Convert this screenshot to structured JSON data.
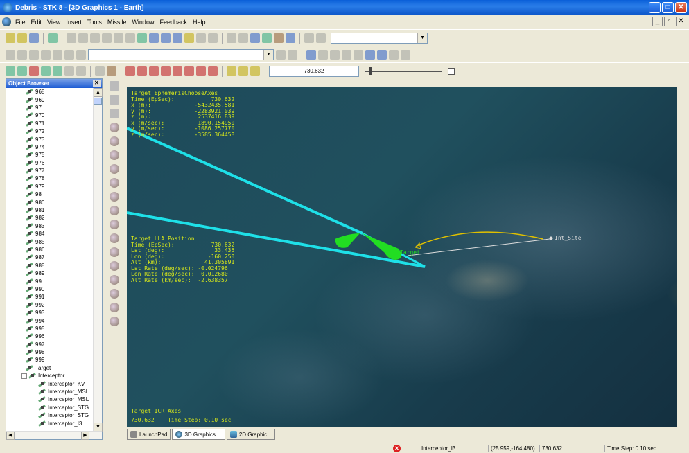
{
  "window": {
    "title": "Debris - STK 8 - [3D Graphics 1 - Earth]"
  },
  "menu": [
    "File",
    "Edit",
    "View",
    "Insert",
    "Tools",
    "Missile",
    "Window",
    "Feedback",
    "Help"
  ],
  "toolbar": {
    "time_value": "730.632"
  },
  "object_browser": {
    "title": "Object Browser",
    "items": [
      "968",
      "969",
      "97",
      "970",
      "971",
      "972",
      "973",
      "974",
      "975",
      "976",
      "977",
      "978",
      "979",
      "98",
      "980",
      "981",
      "982",
      "983",
      "984",
      "985",
      "986",
      "987",
      "988",
      "989",
      "99",
      "990",
      "991",
      "992",
      "993",
      "994",
      "995",
      "996",
      "997",
      "998",
      "999",
      "Target"
    ],
    "interceptor_label": "Interceptor",
    "interceptor_children": [
      "Interceptor_KV",
      "Interceptor_MSL",
      "Interceptor_MSL",
      "Interceptor_STG",
      "Interceptor_STG",
      "Interceptor_I3"
    ]
  },
  "view": {
    "ephemeris": "Target EphemerisChooseAxes\nTime (EpSec):           730.632\nx (m):             -5432435.581\ny (m):             -2283921.039\nz (m):              2537416.839\nx (m/sec):          1890.154950\ny (m/sec):         -1086.257770\nz (m/sec):         -3585.364458",
    "lla": "Target LLA Position\nTime (EpSec):           730.632\nLat (deg):               33.435\nLon (deg):             -160.250\nAlt (km):             41.305891\nLat Rate (deg/sec): -0.024796\nLon Rate (deg/sec):  0.012680\nAlt Rate (km/sec):  -2.638357",
    "icr_axes": "Target ICR Axes",
    "icr_time": "730.632    Time Step: 0.10 sec",
    "target_label": "Target",
    "site_label": "Int_Site"
  },
  "tabs": [
    {
      "label": "LaunchPad"
    },
    {
      "label": "3D Graphics ..."
    },
    {
      "label": "2D Graphic..."
    }
  ],
  "status": {
    "object": "Interceptor_I3",
    "coords": "(25.959,-164.480)",
    "time": "730.632",
    "step": "Time Step: 0.10 sec"
  }
}
